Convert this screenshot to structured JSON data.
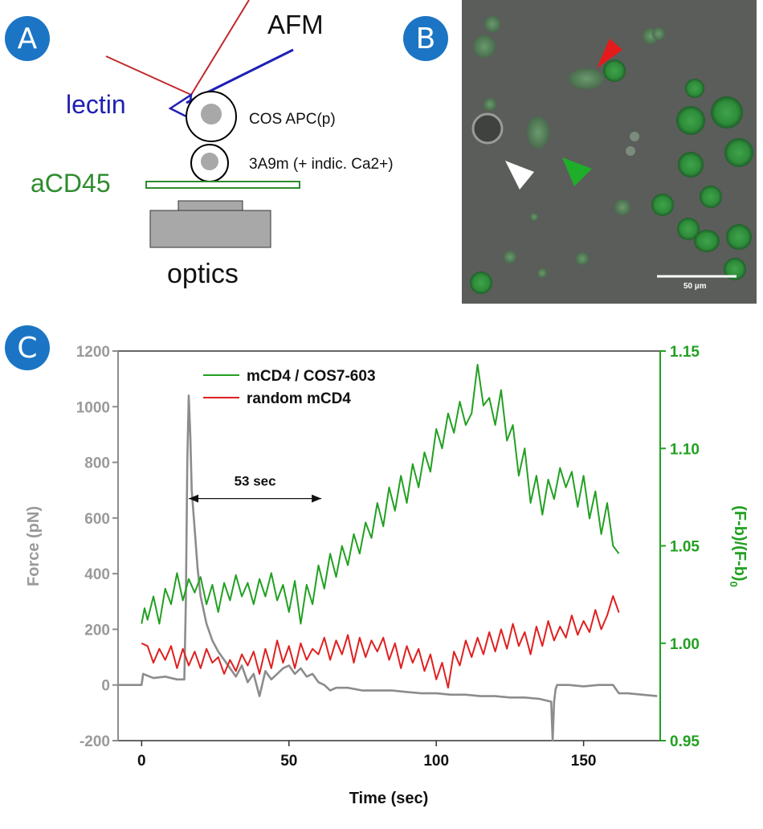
{
  "panel_a": {
    "badge": "A",
    "labels": {
      "afm": "AFM",
      "lectin": "lectin",
      "cos": "COS APC(p)",
      "tcell": "3A9m (+ indic. Ca2+)",
      "acd45": "aCD45",
      "optics": "optics"
    },
    "colors": {
      "afm_line": "#c0282d",
      "lectin": "#1f1fb4",
      "acd45": "#2e8b2e",
      "optics": "#a8a8a8"
    }
  },
  "panel_b": {
    "badge": "B",
    "scale_bar": "50 µm",
    "arrow_colors": {
      "red": "#e31b1b",
      "green": "#1fae2a",
      "white": "#ffffff"
    }
  },
  "panel_c": {
    "badge": "C"
  },
  "chart_data": {
    "type": "line",
    "xlabel": "Time (sec)",
    "ylabel_left": "Force (pN)",
    "ylabel_right": "(F-b)/(F-b)",
    "ylabel_right_sub": "0",
    "xlim": [
      -8,
      176
    ],
    "ylim_left": [
      -200,
      1200
    ],
    "ylim_right": [
      0.95,
      1.15
    ],
    "x_ticks": [
      0,
      50,
      100,
      150
    ],
    "y_ticks_left": [
      -200,
      0,
      200,
      400,
      600,
      800,
      1000,
      1200
    ],
    "y_ticks_right": [
      0.95,
      1.0,
      1.05,
      1.1,
      1.15
    ],
    "y_tick_labels_right": [
      "0.95",
      "1.00",
      "1.05",
      "1.10",
      "1.15"
    ],
    "annotation": {
      "text": "53 sec",
      "x_start": 16,
      "x_end": 61,
      "y": 670
    },
    "legend_position": "top-left",
    "series": [
      {
        "name": "mCD4 / COS7-603",
        "axis": "right",
        "color": "#22a022",
        "x": [
          0,
          1,
          2,
          4,
          6,
          8,
          10,
          12,
          14,
          16,
          18,
          20,
          22,
          24,
          26,
          28,
          30,
          32,
          34,
          36,
          38,
          40,
          42,
          44,
          46,
          48,
          50,
          52,
          54,
          56,
          58,
          60,
          62,
          64,
          66,
          68,
          70,
          72,
          74,
          76,
          78,
          80,
          82,
          84,
          86,
          88,
          90,
          92,
          94,
          96,
          98,
          100,
          102,
          104,
          106,
          108,
          110,
          112,
          114,
          116,
          118,
          120,
          122,
          124,
          126,
          128,
          130,
          132,
          134,
          136,
          138,
          140,
          142,
          144,
          146,
          148,
          150,
          152,
          154,
          156,
          158,
          160,
          162
        ],
        "y": [
          1.01,
          1.018,
          1.012,
          1.024,
          1.01,
          1.028,
          1.02,
          1.036,
          1.022,
          1.033,
          1.026,
          1.034,
          1.02,
          1.03,
          1.016,
          1.031,
          1.022,
          1.035,
          1.024,
          1.031,
          1.02,
          1.033,
          1.024,
          1.036,
          1.022,
          1.03,
          1.016,
          1.032,
          1.01,
          1.03,
          1.02,
          1.04,
          1.028,
          1.046,
          1.034,
          1.05,
          1.04,
          1.056,
          1.046,
          1.062,
          1.054,
          1.072,
          1.06,
          1.08,
          1.068,
          1.086,
          1.072,
          1.092,
          1.08,
          1.098,
          1.088,
          1.11,
          1.1,
          1.118,
          1.108,
          1.124,
          1.112,
          1.118,
          1.143,
          1.122,
          1.126,
          1.112,
          1.13,
          1.104,
          1.112,
          1.086,
          1.1,
          1.072,
          1.086,
          1.066,
          1.084,
          1.074,
          1.09,
          1.08,
          1.088,
          1.07,
          1.086,
          1.064,
          1.078,
          1.056,
          1.072,
          1.05,
          1.046
        ]
      },
      {
        "name": "random mCD4",
        "axis": "left",
        "color": "#e02020",
        "x": [
          0,
          2,
          4,
          6,
          8,
          10,
          12,
          14,
          16,
          18,
          20,
          22,
          24,
          26,
          28,
          30,
          32,
          34,
          36,
          38,
          40,
          42,
          44,
          46,
          48,
          50,
          52,
          54,
          56,
          58,
          60,
          62,
          64,
          66,
          68,
          70,
          72,
          74,
          76,
          78,
          80,
          82,
          84,
          86,
          88,
          90,
          92,
          94,
          96,
          98,
          100,
          102,
          104,
          106,
          108,
          110,
          112,
          114,
          116,
          118,
          120,
          122,
          124,
          126,
          128,
          130,
          132,
          134,
          136,
          138,
          140,
          142,
          144,
          146,
          148,
          150,
          152,
          154,
          156,
          158,
          160,
          162
        ],
        "y": [
          150,
          140,
          80,
          130,
          90,
          140,
          60,
          130,
          70,
          120,
          60,
          130,
          80,
          100,
          40,
          90,
          50,
          110,
          70,
          120,
          40,
          130,
          60,
          160,
          80,
          140,
          60,
          150,
          90,
          130,
          110,
          170,
          90,
          160,
          110,
          180,
          80,
          170,
          100,
          160,
          120,
          170,
          90,
          150,
          60,
          140,
          80,
          130,
          50,
          110,
          20,
          80,
          -10,
          120,
          70,
          160,
          100,
          170,
          110,
          190,
          120,
          200,
          130,
          220,
          140,
          190,
          110,
          210,
          140,
          230,
          160,
          210,
          170,
          250,
          180,
          230,
          190,
          270,
          200,
          250,
          320,
          260
        ]
      },
      {
        "name": "",
        "axis": "left",
        "color": "#8c8c8c",
        "x": [
          -8,
          -4,
          0,
          0.5,
          4,
          8,
          12,
          14.5,
          15,
          15.5,
          16,
          16.5,
          17,
          18,
          19,
          20,
          22,
          24,
          26,
          28,
          30,
          32,
          34,
          36,
          38,
          40,
          42,
          44,
          46,
          48,
          50,
          52,
          54,
          56,
          58,
          60,
          62,
          64,
          66,
          70,
          75,
          80,
          85,
          90,
          95,
          100,
          105,
          110,
          115,
          120,
          125,
          130,
          135,
          139,
          139.5,
          140,
          140.5,
          141,
          145,
          150,
          155,
          160,
          162,
          165,
          170,
          175
        ],
        "y": [
          0,
          0,
          0,
          40,
          25,
          30,
          20,
          20,
          300,
          800,
          1040,
          900,
          700,
          560,
          420,
          320,
          220,
          160,
          120,
          90,
          60,
          30,
          70,
          10,
          40,
          -40,
          50,
          20,
          40,
          60,
          70,
          40,
          60,
          30,
          40,
          10,
          0,
          -20,
          -10,
          -10,
          -20,
          -20,
          -20,
          -25,
          -30,
          -30,
          -35,
          -35,
          -40,
          -40,
          -45,
          -45,
          -50,
          -60,
          -200,
          -60,
          -15,
          0,
          0,
          -5,
          0,
          0,
          -30,
          -30,
          -35,
          -40
        ]
      }
    ]
  }
}
